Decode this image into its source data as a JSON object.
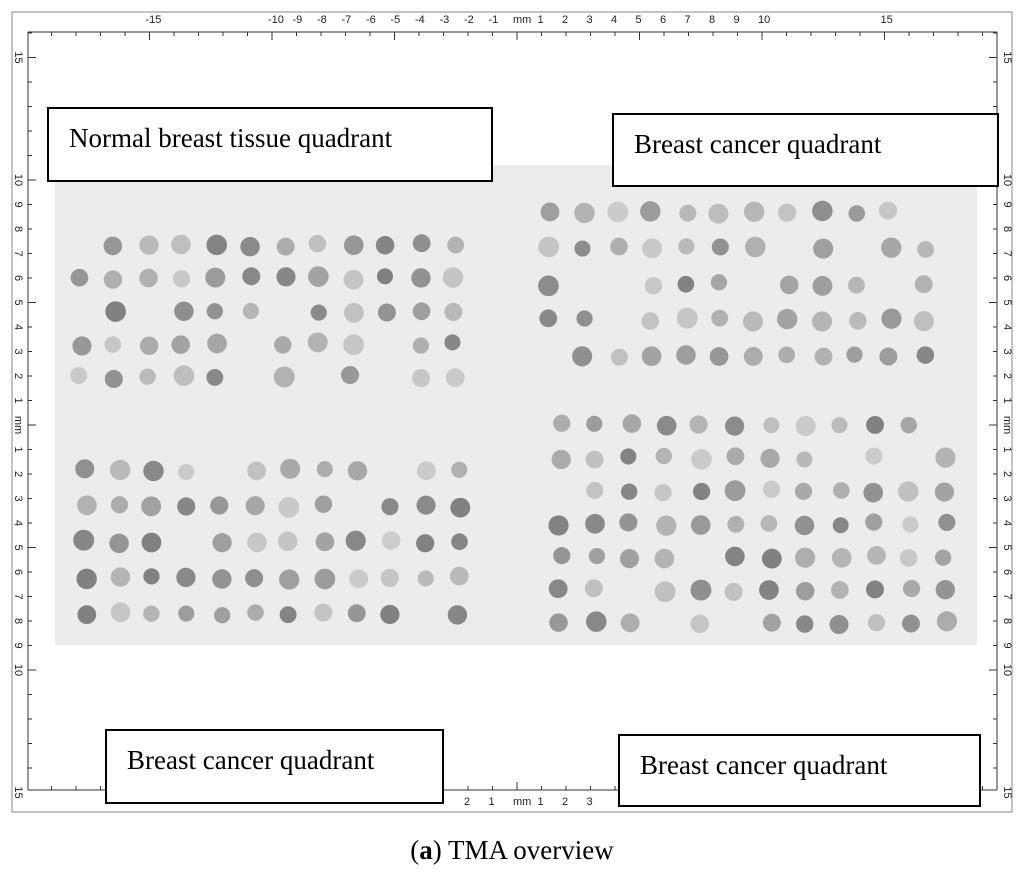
{
  "labels": [
    "Normal breast tissue quadrant",
    "Breast cancer quadrant",
    "Breast cancer quadrant",
    "Breast cancer quadrant"
  ],
  "caption": {
    "before": "(",
    "letter": "a",
    "after": ") TMA overview"
  },
  "ruler": {
    "top": [
      "-15",
      "-10",
      "-9",
      "-8",
      "-7",
      "-6",
      "-5",
      "-4",
      "-3",
      "-2",
      "-1",
      "mm",
      "1",
      "2",
      "3",
      "4",
      "5",
      "6",
      "7",
      "8",
      "9",
      "10",
      "15"
    ],
    "side": [
      "15",
      "10",
      "9",
      "8",
      "7",
      "6",
      "5",
      "4",
      "3",
      "2",
      "1",
      "mm",
      "1",
      "2",
      "3",
      "4",
      "5",
      "6",
      "7",
      "8",
      "9",
      "10",
      "15"
    ],
    "bottom": [
      "2",
      "1",
      "mm",
      "1",
      "2",
      "3"
    ]
  }
}
